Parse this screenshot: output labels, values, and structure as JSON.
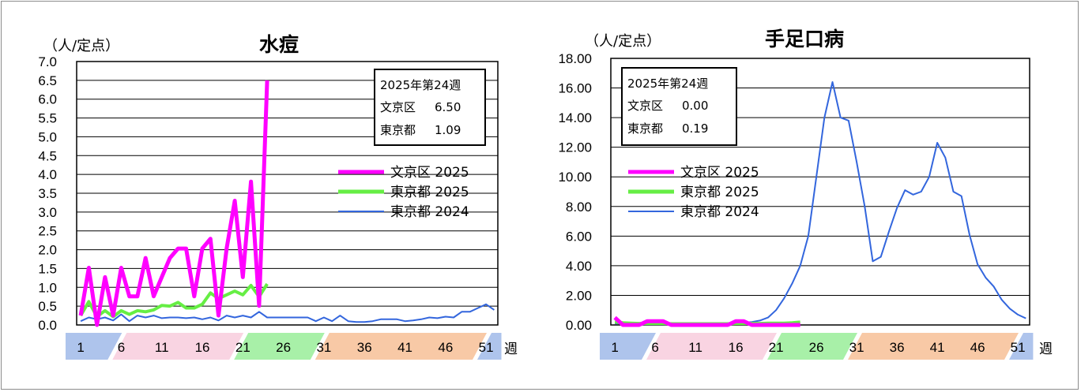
{
  "chart_data": [
    {
      "type": "line",
      "title": "水痘",
      "unit_label": "（人/定点）",
      "xlabel": "週",
      "ylim": [
        0,
        7
      ],
      "yticks": [
        "0.0",
        "0.5",
        "1.0",
        "1.5",
        "2.0",
        "2.5",
        "3.0",
        "3.5",
        "4.0",
        "4.5",
        "5.0",
        "5.5",
        "6.0",
        "6.5",
        "7.0"
      ],
      "week_labels": [
        "1",
        "6",
        "11",
        "16",
        "21",
        "26",
        "31",
        "36",
        "41",
        "46",
        "51"
      ],
      "grid": true,
      "legend_position": "right",
      "info_box": {
        "line1": "2025年第24週",
        "line2_label": "文京区",
        "line2_value": "6.50",
        "line3_label": "東京都",
        "line3_value": "1.09"
      },
      "series": [
        {
          "name": "文京区 2025",
          "color": "#ff00ff",
          "width": 5,
          "values": [
            0.25,
            1.52,
            0.0,
            1.27,
            0.25,
            1.52,
            0.76,
            0.76,
            1.78,
            0.76,
            1.27,
            1.78,
            2.03,
            2.03,
            0.76,
            2.03,
            2.29,
            0.25,
            2.03,
            3.3,
            1.27,
            3.81,
            0.51,
            6.5
          ]
        },
        {
          "name": "東京都 2025",
          "color": "#66ee44",
          "width": 4,
          "values": [
            0.25,
            0.62,
            0.22,
            0.38,
            0.22,
            0.38,
            0.28,
            0.38,
            0.35,
            0.4,
            0.52,
            0.5,
            0.6,
            0.45,
            0.45,
            0.55,
            0.85,
            0.7,
            0.8,
            0.9,
            0.8,
            1.05,
            0.75,
            1.09
          ]
        },
        {
          "name": "東京都 2024",
          "color": "#3366dd",
          "width": 2,
          "values": [
            0.1,
            0.2,
            0.15,
            0.2,
            0.12,
            0.28,
            0.1,
            0.25,
            0.2,
            0.25,
            0.18,
            0.2,
            0.2,
            0.18,
            0.2,
            0.15,
            0.2,
            0.12,
            0.25,
            0.2,
            0.25,
            0.2,
            0.35,
            0.2,
            0.2,
            0.2,
            0.2,
            0.2,
            0.2,
            0.1,
            0.2,
            0.1,
            0.25,
            0.1,
            0.08,
            0.08,
            0.1,
            0.15,
            0.15,
            0.15,
            0.1,
            0.12,
            0.15,
            0.2,
            0.18,
            0.22,
            0.2,
            0.35,
            0.35,
            0.45,
            0.55,
            0.4
          ]
        }
      ]
    },
    {
      "type": "line",
      "title": "手足口病",
      "unit_label": "（人/定点）",
      "xlabel": "週",
      "ylim": [
        0,
        18
      ],
      "yticks": [
        "0.00",
        "2.00",
        "4.00",
        "6.00",
        "8.00",
        "10.00",
        "12.00",
        "14.00",
        "16.00",
        "18.00"
      ],
      "week_labels": [
        "1",
        "6",
        "11",
        "16",
        "21",
        "26",
        "31",
        "36",
        "41",
        "46",
        "51"
      ],
      "grid": true,
      "legend_position": "left",
      "info_box": {
        "line1": "2025年第24週",
        "line2_label": "文京区",
        "line2_value": "0.00",
        "line3_label": "東京都",
        "line3_value": "0.19"
      },
      "series": [
        {
          "name": "文京区 2025",
          "color": "#ff00ff",
          "width": 5,
          "values": [
            0.5,
            0.0,
            0.0,
            0.0,
            0.25,
            0.25,
            0.25,
            0.0,
            0.0,
            0.0,
            0.0,
            0.0,
            0.0,
            0.0,
            0.0,
            0.25,
            0.25,
            0.0,
            0.0,
            0.0,
            0.0,
            0.0,
            0.0,
            0.0
          ]
        },
        {
          "name": "東京都 2025",
          "color": "#66ee44",
          "width": 4,
          "values": [
            0.2,
            0.15,
            0.12,
            0.1,
            0.1,
            0.1,
            0.1,
            0.08,
            0.08,
            0.08,
            0.08,
            0.08,
            0.08,
            0.08,
            0.08,
            0.1,
            0.1,
            0.1,
            0.1,
            0.12,
            0.12,
            0.12,
            0.15,
            0.19
          ]
        },
        {
          "name": "東京都 2024",
          "color": "#3366dd",
          "width": 2,
          "values": [
            0.1,
            0.1,
            0.1,
            0.05,
            0.05,
            0.05,
            0.05,
            0.05,
            0.05,
            0.05,
            0.05,
            0.05,
            0.05,
            0.05,
            0.1,
            0.1,
            0.15,
            0.2,
            0.3,
            0.5,
            1.0,
            1.8,
            2.8,
            4.0,
            6.0,
            10.0,
            14.0,
            16.4,
            14.0,
            13.8,
            11.0,
            8.0,
            4.3,
            4.6,
            6.3,
            7.9,
            9.1,
            8.8,
            9.0,
            10.0,
            12.3,
            11.3,
            9.0,
            8.7,
            6.1,
            4.1,
            3.2,
            2.6,
            1.7,
            1.1,
            0.7,
            0.45
          ]
        }
      ]
    }
  ],
  "bands": [
    {
      "label_start": "1",
      "color": "#aec4ec"
    },
    {
      "label_start": "11",
      "color": "#f9d4e2"
    },
    {
      "label_start": "26",
      "color": "#a8f0a8"
    },
    {
      "label_start": "36",
      "color": "#f8c9a6"
    },
    {
      "label_start": "51",
      "color": "#aec4ec"
    }
  ]
}
